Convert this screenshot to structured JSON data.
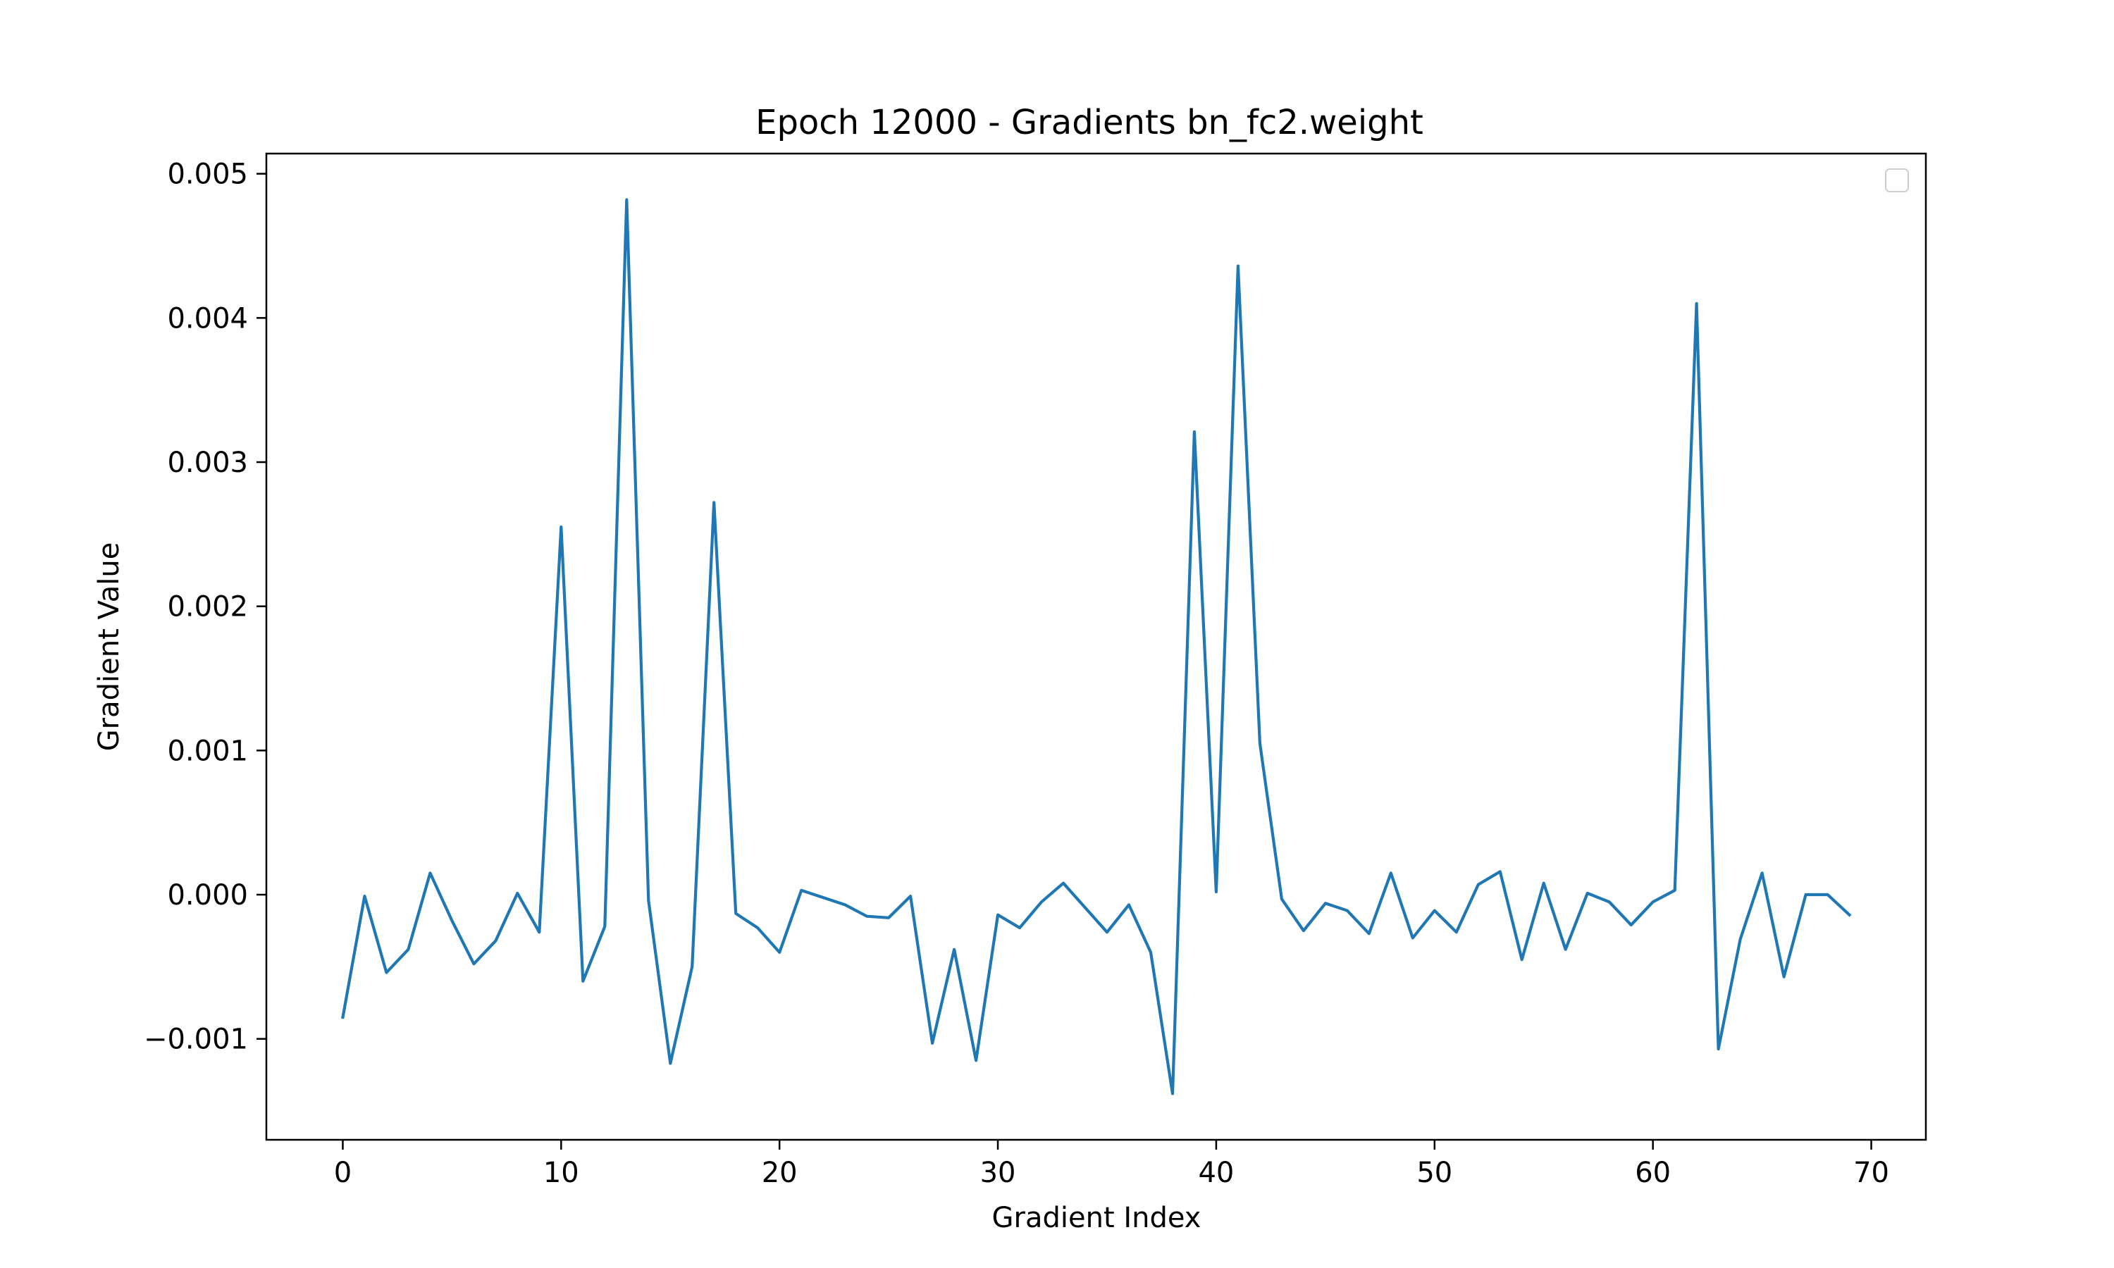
{
  "chart_data": {
    "type": "line",
    "title": "Epoch 12000 - Gradients bn_fc2.weight",
    "xlabel": "Gradient Index",
    "ylabel": "Gradient Value",
    "xlim": [
      -3.5,
      72.5
    ],
    "ylim": [
      -0.0017,
      0.00514
    ],
    "xticks": [
      0,
      10,
      20,
      30,
      40,
      50,
      60,
      70
    ],
    "xtick_labels": [
      "0",
      "10",
      "20",
      "30",
      "40",
      "50",
      "60",
      "70"
    ],
    "yticks": [
      -0.001,
      0.0,
      0.001,
      0.002,
      0.003,
      0.004,
      0.005
    ],
    "ytick_labels": [
      "−0.001",
      "0.000",
      "0.001",
      "0.002",
      "0.003",
      "0.004",
      "0.005"
    ],
    "grid": false,
    "legend": {
      "placement": "upper right",
      "entries": []
    },
    "series": [
      {
        "color": "#1f77b4",
        "x": [
          0,
          1,
          2,
          3,
          4,
          5,
          6,
          7,
          8,
          9,
          10,
          11,
          12,
          13,
          14,
          15,
          16,
          17,
          18,
          19,
          20,
          21,
          22,
          23,
          24,
          25,
          26,
          27,
          28,
          29,
          30,
          31,
          32,
          33,
          34,
          35,
          36,
          37,
          38,
          39,
          40,
          41,
          42,
          43,
          44,
          45,
          46,
          47,
          48,
          49,
          50,
          51,
          52,
          53,
          54,
          55,
          56,
          57,
          58,
          59,
          60,
          61,
          62,
          63,
          64,
          65,
          66,
          67,
          68,
          69
        ],
        "values": [
          -0.00085,
          -1e-05,
          -0.00054,
          -0.00038,
          0.00015,
          -0.00018,
          -0.00048,
          -0.00032,
          1e-05,
          -0.00026,
          0.00255,
          -0.0006,
          -0.00022,
          0.00482,
          -4e-05,
          -0.00117,
          -0.0005,
          0.00272,
          -0.00013,
          -0.00023,
          -0.0004,
          3e-05,
          -2e-05,
          -7e-05,
          -0.00015,
          -0.00016,
          -1e-05,
          -0.00103,
          -0.00038,
          -0.00115,
          -0.00014,
          -0.00023,
          -5e-05,
          8e-05,
          -9e-05,
          -0.00026,
          -7e-05,
          -0.0004,
          -0.00138,
          0.00321,
          2e-05,
          0.00436,
          0.00105,
          -3e-05,
          -0.00025,
          -6e-05,
          -0.00011,
          -0.00027,
          0.00015,
          -0.0003,
          -0.00011,
          -0.00026,
          7e-05,
          0.00016,
          -0.00045,
          8e-05,
          -0.00038,
          1e-05,
          -5e-05,
          -0.00021,
          -5e-05,
          3e-05,
          0.0041,
          -0.00107,
          -0.00031,
          0.00015,
          -0.00057,
          0.0,
          0.0,
          -0.00014
        ]
      }
    ]
  }
}
